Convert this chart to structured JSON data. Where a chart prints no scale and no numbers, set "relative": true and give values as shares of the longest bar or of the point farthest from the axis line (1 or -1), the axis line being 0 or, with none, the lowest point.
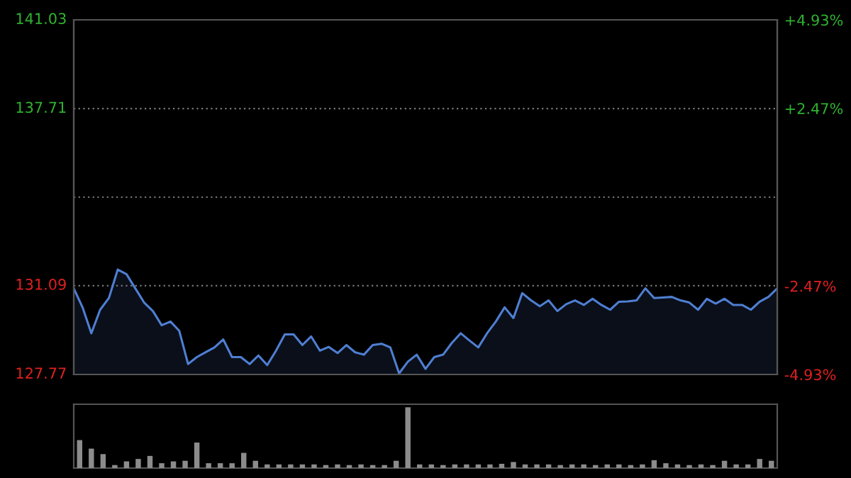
{
  "chart_data": [
    {
      "type": "area",
      "categories": [
        null,
        null,
        null,
        null,
        null,
        null,
        null,
        null,
        null,
        null,
        null,
        null,
        null,
        null,
        null,
        null,
        null,
        null,
        null,
        null,
        null,
        null,
        null,
        null,
        null,
        null,
        null,
        null,
        null,
        null,
        null,
        null,
        null,
        null,
        null,
        null,
        null,
        null,
        null,
        null,
        null,
        null,
        null,
        null,
        null,
        null,
        null,
        null,
        null,
        null,
        null,
        null,
        null,
        null,
        null,
        null,
        null,
        null,
        null,
        null,
        null,
        null,
        null,
        null,
        null,
        null,
        null,
        null,
        null,
        null,
        null,
        null,
        null,
        null,
        null,
        null,
        null,
        null,
        null,
        null,
        null
      ],
      "series": [
        {
          "color": "#4f7fd2",
          "values": [
            130.99,
            130.28,
            129.31,
            130.19,
            130.63,
            131.69,
            131.52,
            130.99,
            130.46,
            130.14,
            129.61,
            129.75,
            129.4,
            128.16,
            128.42,
            128.6,
            128.78,
            129.08,
            128.42,
            128.42,
            128.16,
            128.48,
            128.12,
            128.66,
            129.27,
            129.27,
            128.87,
            129.19,
            128.66,
            128.8,
            128.57,
            128.87,
            128.6,
            128.51,
            128.87,
            128.92,
            128.78,
            127.81,
            128.25,
            128.51,
            127.98,
            128.42,
            128.51,
            128.95,
            129.31,
            129.04,
            128.78,
            129.31,
            129.75,
            130.28,
            129.88,
            130.81,
            130.54,
            130.32,
            130.54,
            130.14,
            130.4,
            130.54,
            130.37,
            130.6,
            130.37,
            130.19,
            130.49,
            130.5,
            130.54,
            130.99,
            130.63,
            130.65,
            130.67,
            130.54,
            130.46,
            130.19,
            130.6,
            130.42,
            130.6,
            130.37,
            130.37,
            130.19,
            130.49,
            130.67,
            130.99
          ]
        }
      ],
      "ylim": [
        127.77,
        141.03
      ],
      "yticks": [
        127.77,
        131.09,
        {
          "value": 134.4,
          "label": null
        },
        137.71,
        141.03
      ],
      "y2lim": [
        -4.93,
        4.93
      ],
      "y2ticks": [
        {
          "value": -4.93,
          "label": "-4.93%"
        },
        {
          "value": -2.47,
          "label": "-2.47%"
        },
        {
          "value": 2.47,
          "label": "+2.47%"
        },
        {
          "value": 4.93,
          "label": "+4.93%"
        }
      ],
      "grid": "y"
    },
    {
      "type": "bar",
      "relative": true,
      "color": "#8c8c8c",
      "categories": [
        null,
        null,
        null,
        null,
        null,
        null,
        null,
        null,
        null,
        null,
        null,
        null,
        null,
        null,
        null,
        null,
        null,
        null,
        null,
        null,
        null,
        null,
        null,
        null,
        null,
        null,
        null,
        null,
        null,
        null,
        null,
        null,
        null,
        null,
        null,
        null,
        null,
        null,
        null,
        null,
        null,
        null,
        null,
        null,
        null,
        null,
        null,
        null,
        null,
        null,
        null,
        null,
        null,
        null,
        null,
        null,
        null,
        null,
        null,
        null
      ],
      "values": [
        0.46,
        0.32,
        0.23,
        0.05,
        0.11,
        0.15,
        0.2,
        0.08,
        0.11,
        0.12,
        0.42,
        0.08,
        0.08,
        0.08,
        0.25,
        0.12,
        0.06,
        0.06,
        0.06,
        0.06,
        0.06,
        0.05,
        0.06,
        0.05,
        0.06,
        0.05,
        0.05,
        0.12,
        1.0,
        0.06,
        0.06,
        0.05,
        0.06,
        0.06,
        0.06,
        0.06,
        0.07,
        0.1,
        0.06,
        0.06,
        0.06,
        0.05,
        0.06,
        0.06,
        0.05,
        0.06,
        0.06,
        0.05,
        0.06,
        0.13,
        0.08,
        0.06,
        0.05,
        0.06,
        0.05,
        0.12,
        0.06,
        0.06,
        0.15,
        0.12
      ]
    }
  ]
}
